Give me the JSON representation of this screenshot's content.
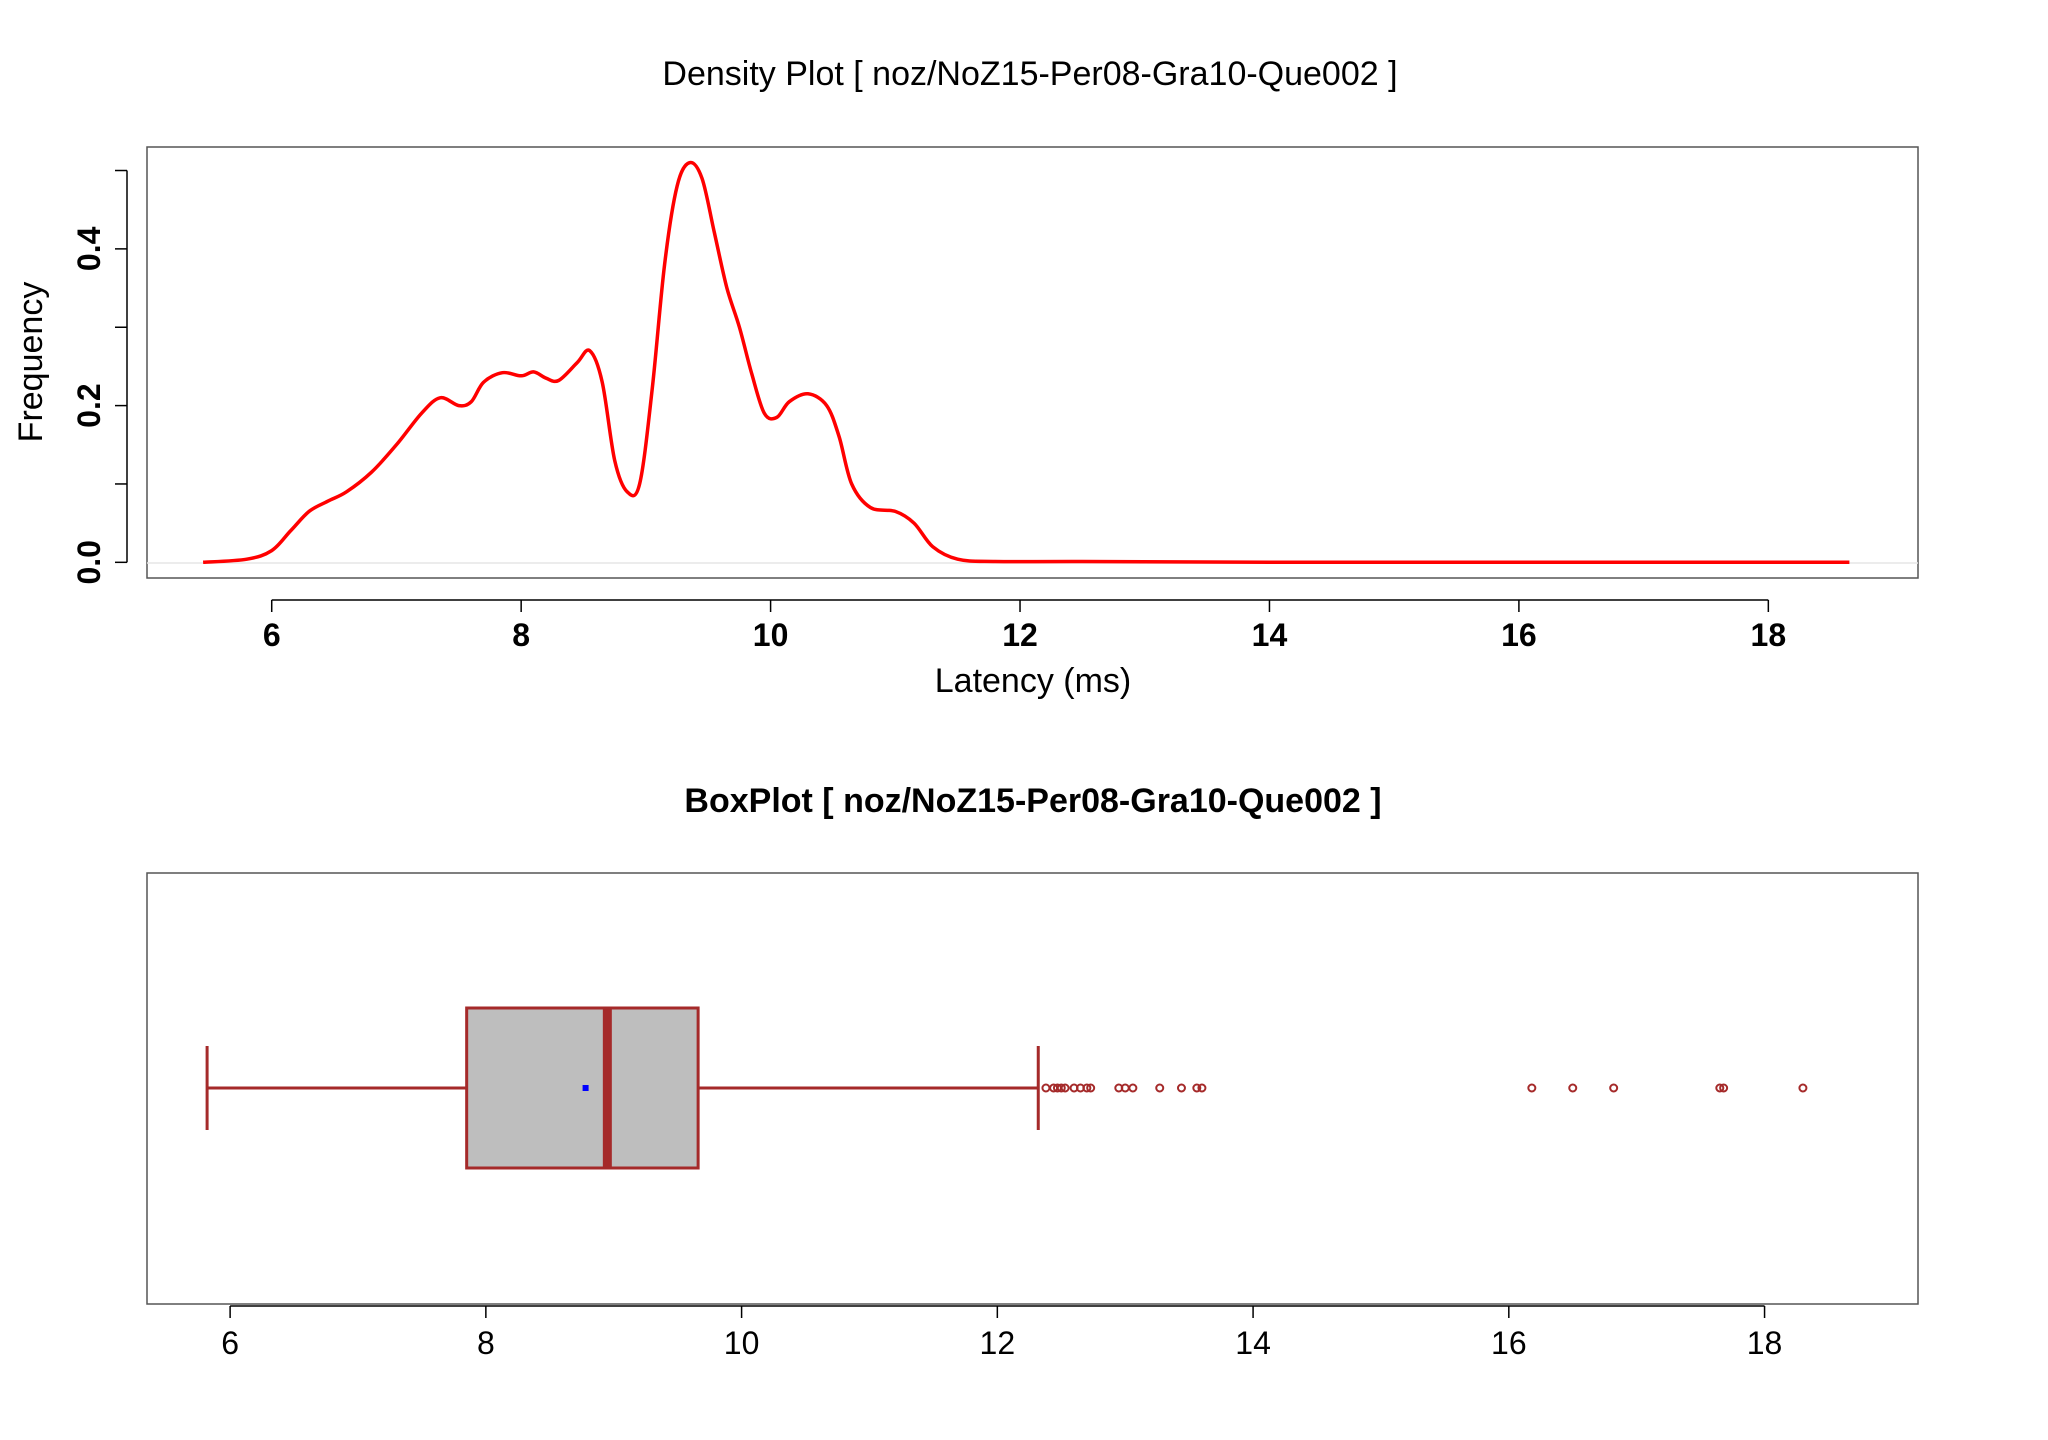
{
  "chart_data": [
    {
      "type": "line",
      "title": "Density Plot [ noz/NoZ15-Per08-Gra10-Que002 ]",
      "xlabel": "Latency (ms)",
      "ylabel": "Frequency",
      "xlim": [
        5.0,
        19.2
      ],
      "ylim": [
        -0.02,
        0.53
      ],
      "x_ticks": [
        "6",
        "8",
        "10",
        "12",
        "14",
        "16",
        "18"
      ],
      "y_ticks": [
        "0.0",
        "0.2",
        "0.4"
      ],
      "y_tick_values": [
        0.0,
        0.2,
        0.4
      ],
      "y_minor_ticks": [
        0.1,
        0.3,
        0.5
      ],
      "line_color": "#ff0000",
      "grid": false,
      "series": [
        {
          "x": [
            5.45,
            5.8,
            6.0,
            6.15,
            6.3,
            6.45,
            6.6,
            6.8,
            7.0,
            7.2,
            7.35,
            7.5,
            7.6,
            7.7,
            7.85,
            8.0,
            8.1,
            8.2,
            8.3,
            8.45,
            8.55,
            8.65,
            8.75,
            8.85,
            8.95,
            9.05,
            9.15,
            9.25,
            9.35,
            9.45,
            9.55,
            9.65,
            9.75,
            9.85,
            9.95,
            10.05,
            10.15,
            10.3,
            10.45,
            10.55,
            10.65,
            10.8,
            11.0,
            11.15,
            11.3,
            11.5,
            11.8,
            12.5,
            14.0,
            16.0,
            18.65
          ],
          "y": [
            0.0,
            0.004,
            0.015,
            0.04,
            0.065,
            0.078,
            0.09,
            0.115,
            0.15,
            0.19,
            0.21,
            0.2,
            0.205,
            0.23,
            0.242,
            0.238,
            0.243,
            0.235,
            0.232,
            0.255,
            0.27,
            0.23,
            0.13,
            0.09,
            0.1,
            0.22,
            0.38,
            0.48,
            0.51,
            0.49,
            0.42,
            0.35,
            0.3,
            0.24,
            0.19,
            0.185,
            0.205,
            0.215,
            0.2,
            0.16,
            0.1,
            0.07,
            0.065,
            0.05,
            0.02,
            0.004,
            0.001,
            0.001,
            0.0,
            0.0,
            0.0
          ]
        }
      ]
    },
    {
      "type": "box",
      "title": "BoxPlot [ noz/NoZ15-Per08-Gra10-Que002 ]",
      "xlim": [
        5.35,
        19.2
      ],
      "x_ticks": [
        "6",
        "8",
        "10",
        "12",
        "14",
        "16",
        "18"
      ],
      "box_color": "#a52a2a",
      "box_fill": "#bebebe",
      "mean_color": "#0000ff",
      "whisker_low": 5.82,
      "q1": 7.85,
      "median": 8.95,
      "q3": 9.66,
      "whisker_high": 12.32,
      "mean": 8.78,
      "outliers": [
        12.38,
        12.44,
        12.47,
        12.5,
        12.53,
        12.6,
        12.65,
        12.7,
        12.73,
        12.95,
        13.0,
        13.06,
        13.27,
        13.44,
        13.56,
        13.6,
        16.18,
        16.5,
        16.82,
        17.65,
        17.68,
        18.3
      ]
    }
  ]
}
